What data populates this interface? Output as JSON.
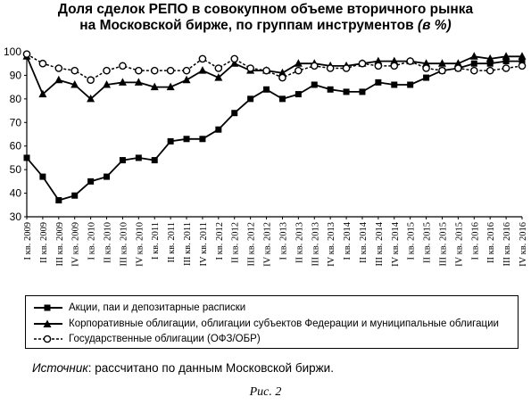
{
  "chart_title_line1": "Доля сделок РЕПО в совокупном объеме вторичного рынка",
  "chart_title_line2": "на Московской бирже, по группам инструментов",
  "chart_title_unit": "(в %)",
  "source_label": "Источник",
  "source_text": ": рассчитано по данным Московской биржи.",
  "figure_caption": "Рис. 2",
  "chart_data": {
    "type": "line",
    "title": "Доля сделок РЕПО в совокупном объеме вторичного рынка на Московской бирже, по группам инструментов (в %)",
    "ylim": [
      30,
      100
    ],
    "yticks": [
      30,
      40,
      50,
      60,
      70,
      80,
      90,
      100
    ],
    "grid": false,
    "legend_position": "bottom",
    "categories": [
      "I кв. 2009",
      "II кв. 2009",
      "III кв. 2009",
      "IV кв. 2009",
      "I кв. 2010",
      "II кв. 2010",
      "III кв. 2010",
      "IV кв. 2010",
      "I кв. 2011",
      "II кв. 2011",
      "III кв. 2011",
      "IV кв. 2011",
      "I кв. 2012",
      "II кв. 2012",
      "III кв. 2012",
      "IV кв. 2012",
      "I кв. 2013",
      "II кв. 2013",
      "III кв. 2013",
      "IV кв. 2013",
      "I кв. 2014",
      "II кв. 2014",
      "III кв. 2014",
      "IV кв. 2014",
      "I кв. 2015",
      "II кв. 2015",
      "III кв. 2015",
      "IV кв. 2015",
      "I кв. 2016",
      "II кв. 2016",
      "III кв. 2016",
      "IV кв. 2016"
    ],
    "series": [
      {
        "name": "Акции, паи и депозитарные расписки",
        "marker": "square-filled",
        "line": "solid",
        "values": [
          55,
          47,
          37,
          39,
          45,
          47,
          54,
          55,
          54,
          62,
          63,
          63,
          67,
          74,
          80,
          84,
          80,
          82,
          86,
          84,
          83,
          83,
          87,
          86,
          86,
          89,
          92,
          93,
          95,
          95,
          96,
          96
        ]
      },
      {
        "name": "Корпоративные облигации, облигации субъектов Федерации и муниципальные облигации",
        "marker": "triangle-filled",
        "line": "solid",
        "values": [
          98,
          82,
          88,
          86,
          80,
          86,
          87,
          87,
          85,
          85,
          88,
          92,
          89,
          95,
          92,
          92,
          91,
          95,
          95,
          94,
          94,
          95,
          96,
          96,
          96,
          95,
          95,
          95,
          98,
          97,
          98,
          98
        ]
      },
      {
        "name": "Государственные облигации (ОФЗ/ОБР)",
        "marker": "circle-open",
        "line": "dashed",
        "values": [
          99,
          95,
          93,
          92,
          88,
          92,
          94,
          92,
          92,
          92,
          92,
          97,
          93,
          97,
          93,
          92,
          89,
          92,
          94,
          93,
          93,
          95,
          94,
          94,
          96,
          93,
          92,
          93,
          92,
          92,
          93,
          94
        ]
      }
    ]
  }
}
